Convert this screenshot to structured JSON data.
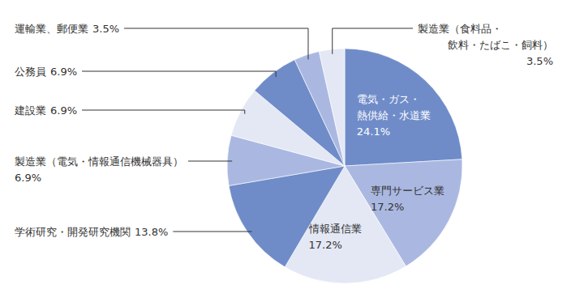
{
  "chart_data": {
    "type": "pie",
    "categories": [
      "電気・ガス・熱供給・水道業",
      "専門サービス業",
      "情報通信業",
      "学術研究・開発研究機関",
      "製造業（電気・情報通信機械器具）",
      "建設業",
      "公務員",
      "運輸業、郵便業",
      "製造業（食料品・飲料・たばこ・飼料）"
    ],
    "values": [
      24.1,
      17.2,
      17.2,
      13.8,
      6.9,
      6.9,
      6.9,
      3.5,
      3.5
    ],
    "value_labels": [
      "24.1%",
      "17.2%",
      "17.2%",
      "13.8%",
      "6.9%",
      "6.9%",
      "6.9%",
      "3.5%",
      "3.5%"
    ],
    "colors": [
      "#6f8cc9",
      "#aab8e1",
      "#e4e8f5",
      "#6f8cc9",
      "#aab8e1",
      "#e4e8f5",
      "#6f8cc9",
      "#aab8e1",
      "#e4e8f5"
    ],
    "data_labels": true
  }
}
